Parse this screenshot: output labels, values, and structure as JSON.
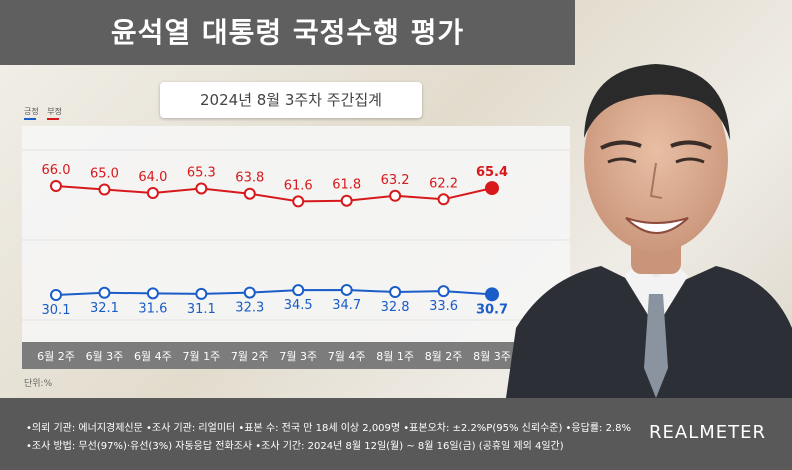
{
  "header": {
    "title": "윤석열 대통령 국정수행 평가"
  },
  "subtitle": "2024년 8월 3주차 주간집계",
  "unit_label": "단위:%",
  "footer": {
    "line1": "•의뢰 기관: 에너지경제신문 •조사 기관: 리얼미터 •표본 수: 전국 만 18세 이상 2,009명 •표본오차: ±2.2%P(95% 신뢰수준) •응답률: 2.8%",
    "line2": "•조사 방법: 무선(97%)·유선(3%) 자동응답 전화조사 •조사 기간: 2024년 8월 12일(월) ~ 8월 16일(금) (공휴일 제외 4일간)",
    "brand": "REALMETER"
  },
  "portrait": {
    "icon": "president-portrait"
  },
  "colors": {
    "negative": "#d7191c",
    "positive": "#1a5cc8",
    "title_bg": "#5f5f5f",
    "footer_bg": "#595959"
  },
  "chart_data": {
    "type": "line",
    "categories": [
      "6월 2주",
      "6월 3주",
      "6월 4주",
      "7월 1주",
      "7월 2주",
      "7월 3주",
      "7월 4주",
      "8월 1주",
      "8월 2주",
      "8월 3주"
    ],
    "series": [
      {
        "name": "부정",
        "color": "#d7191c",
        "values": [
          66.0,
          65.0,
          64.0,
          65.3,
          63.8,
          61.6,
          61.8,
          63.2,
          62.2,
          65.4
        ]
      },
      {
        "name": "긍정",
        "color": "#1a5cc8",
        "values": [
          30.1,
          32.1,
          31.6,
          31.1,
          32.3,
          34.5,
          34.7,
          32.8,
          33.6,
          30.7
        ]
      }
    ],
    "ylabel": "단위:%",
    "grid": true,
    "legend_position": "top-left"
  }
}
